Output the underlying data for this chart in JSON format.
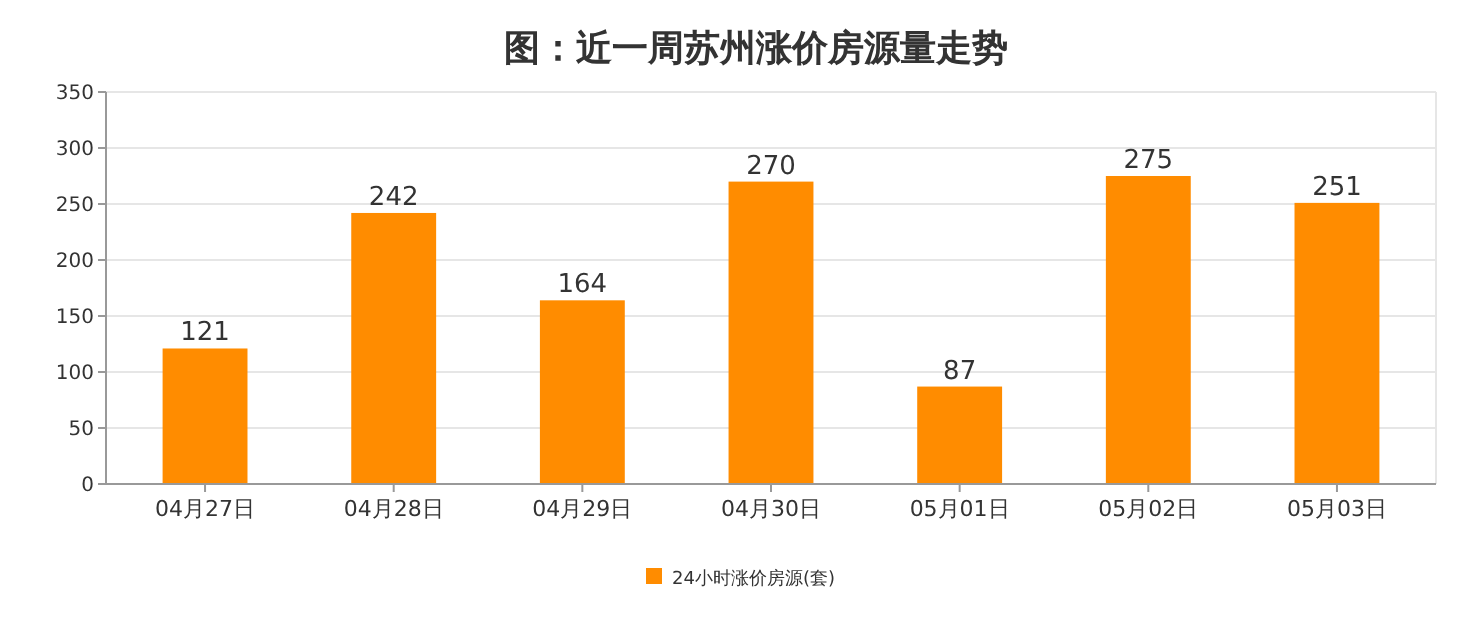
{
  "chart_data": {
    "type": "bar",
    "title": "图：近一周苏州涨价房源量走势",
    "categories": [
      "04月27日",
      "04月28日",
      "04月29日",
      "04月30日",
      "05月01日",
      "05月02日",
      "05月03日"
    ],
    "series": [
      {
        "name": "24小时涨价房源(套)",
        "color": "#ff8c00",
        "values": [
          121,
          242,
          164,
          270,
          87,
          275,
          251
        ]
      }
    ],
    "ylim": [
      0,
      350
    ],
    "yticks": [
      0,
      50,
      100,
      150,
      200,
      250,
      300,
      350
    ],
    "grid": "y",
    "legend": "bottom",
    "data_labels": true
  }
}
